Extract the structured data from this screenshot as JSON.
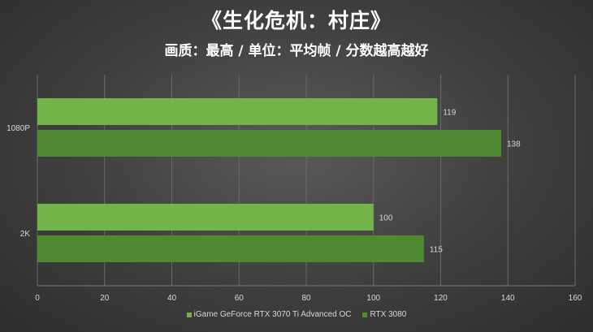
{
  "title": "《生化危机：村庄》",
  "subtitle": "画质：最高 / 单位：平均帧 / 分数越高越好",
  "colors": {
    "background": "#3e3e3e",
    "grid": "#6a6a6a",
    "text": "#d8d8d8"
  },
  "chart_data": {
    "type": "bar",
    "orientation": "horizontal",
    "categories": [
      "1080P",
      "2K"
    ],
    "series": [
      {
        "name": "iGame GeForce RTX 3070 Ti Advanced OC",
        "values": [
          119,
          100
        ],
        "color": "#72b34a"
      },
      {
        "name": "RTX 3080",
        "values": [
          138,
          115
        ],
        "color": "#4f8a33"
      }
    ],
    "xlim": [
      0,
      160
    ],
    "xticks": [
      0,
      20,
      40,
      60,
      80,
      100,
      120,
      140,
      160
    ],
    "grid": true,
    "legend_position": "bottom"
  }
}
